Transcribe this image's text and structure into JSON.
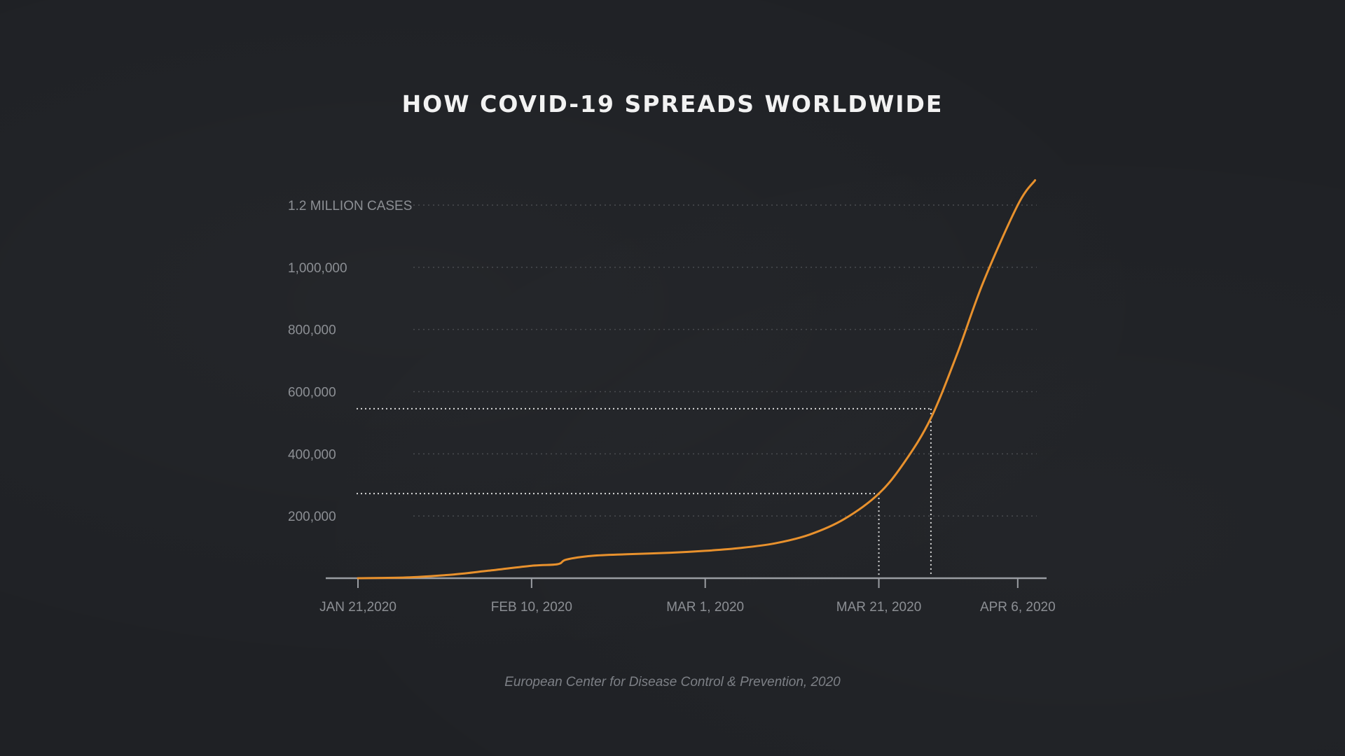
{
  "chart_data": {
    "type": "line",
    "title": "HOW COVID-19 SPREADS WORLDWIDE",
    "source": "European Center for Disease Control & Prevention, 2020",
    "xlabel": "",
    "ylabel": "",
    "y_ticks": [
      {
        "value": 200000,
        "label": "200,000"
      },
      {
        "value": 400000,
        "label": "400,000"
      },
      {
        "value": 600000,
        "label": "600,000"
      },
      {
        "value": 800000,
        "label": "800,000"
      },
      {
        "value": 1000000,
        "label": "1,000,000"
      },
      {
        "value": 1200000,
        "label": "1.2 MILLION CASES"
      }
    ],
    "x_ticks": [
      {
        "value": "2020-01-21",
        "label": "JAN 21,2020"
      },
      {
        "value": "2020-02-10",
        "label": "FEB 10, 2020"
      },
      {
        "value": "2020-03-01",
        "label": "MAR 1, 2020"
      },
      {
        "value": "2020-03-21",
        "label": "MAR 21, 2020"
      },
      {
        "value": "2020-04-06",
        "label": "APR 6, 2020"
      }
    ],
    "xlim": [
      "2020-01-21",
      "2020-04-09"
    ],
    "ylim": [
      0,
      1200000
    ],
    "grid": true,
    "series": [
      {
        "color": "#e8912d",
        "x": [
          "2020-01-21",
          "2020-01-27",
          "2020-02-01",
          "2020-02-05",
          "2020-02-10",
          "2020-02-13",
          "2020-02-14",
          "2020-02-17",
          "2020-02-21",
          "2020-02-26",
          "2020-03-01",
          "2020-03-05",
          "2020-03-09",
          "2020-03-13",
          "2020-03-17",
          "2020-03-21",
          "2020-03-24",
          "2020-03-27",
          "2020-03-30",
          "2020-04-02",
          "2020-04-06",
          "2020-04-08"
        ],
        "values": [
          0,
          3000,
          12000,
          24000,
          40000,
          45000,
          60000,
          72000,
          77000,
          82000,
          88000,
          97000,
          112000,
          140000,
          190000,
          272000,
          375000,
          515000,
          720000,
          950000,
          1200000,
          1280000
        ]
      }
    ],
    "reference_points": [
      {
        "x": "2020-03-21",
        "y": 272000
      },
      {
        "x": "2020-03-27",
        "y": 545000
      }
    ]
  },
  "colors": {
    "background": "#1f2125",
    "line": "#e8912d",
    "axis": "#9a9da2",
    "grid": "#4a4c50",
    "reference": "#d8d8d8"
  }
}
